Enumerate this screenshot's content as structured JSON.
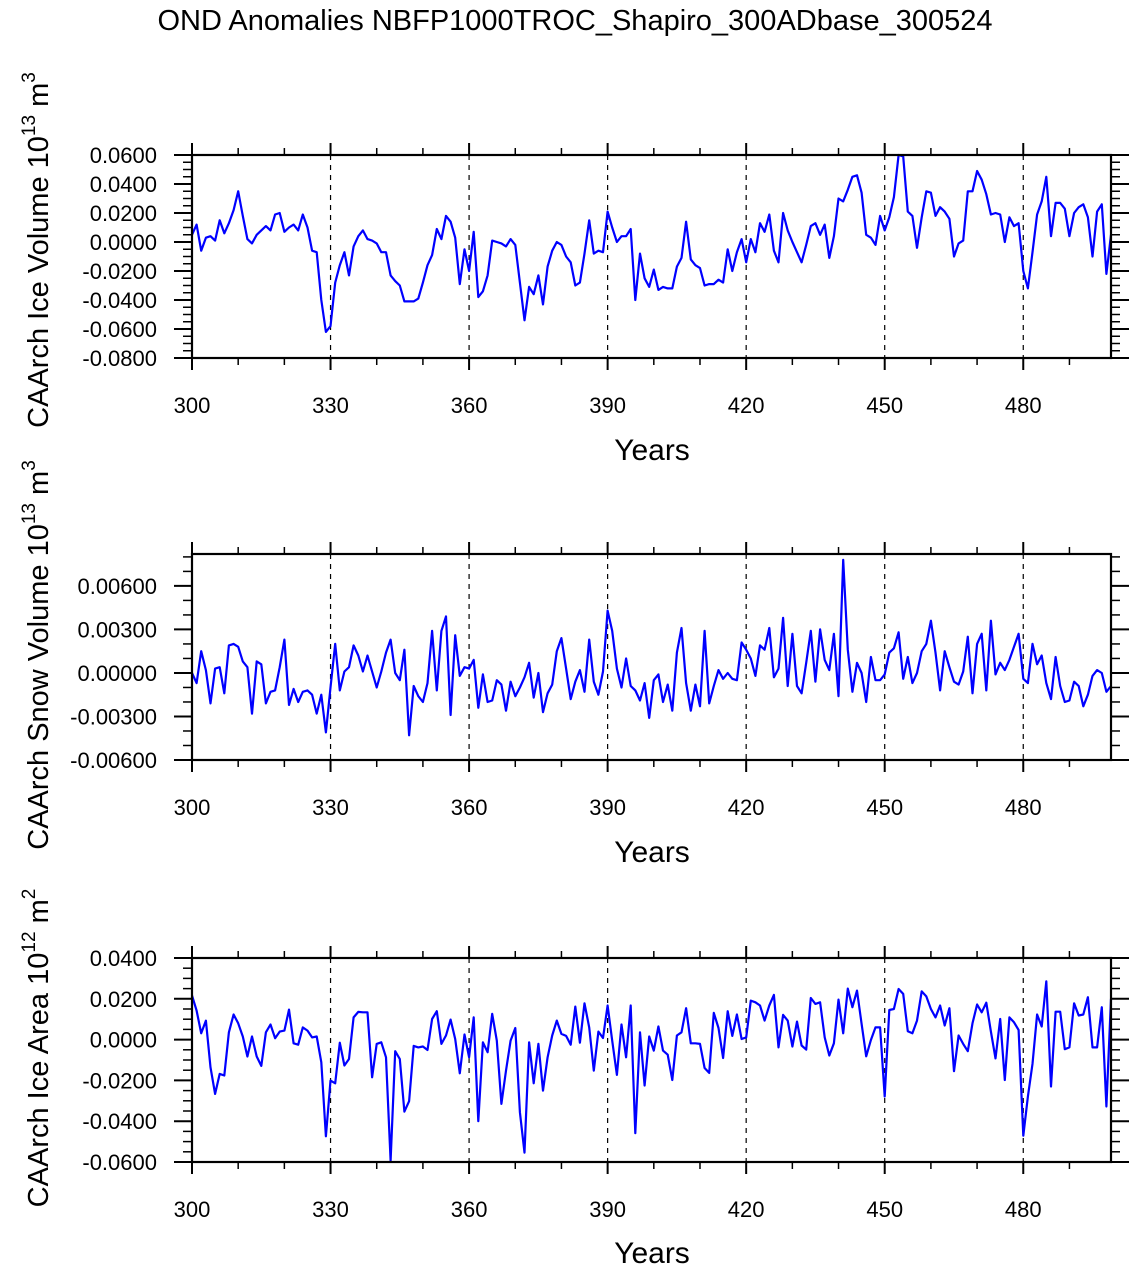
{
  "chart_data": {
    "title": "OND Anomalies NBFP1000TROC_Shapiro_300ADbase_300524",
    "type": "line",
    "line_color": "#0000FF",
    "x": {
      "start": 300,
      "end": 499,
      "step": 1
    },
    "panels": [
      {
        "ylabel": "CAArch Ice Volume 10",
        "ylabel_exp": "13",
        "ylabel_unit": " m",
        "ylabel_unit_exp": "3",
        "xlabel": "Years",
        "ylim": [
          -0.08,
          0.06
        ],
        "yticks": [
          0.06,
          0.04,
          0.02,
          0.0,
          -0.02,
          -0.04,
          -0.06,
          -0.08
        ],
        "ytick_labels": [
          "0.0600",
          "0.0400",
          "0.0200",
          "0.0000",
          "-0.0200",
          "-0.0400",
          "-0.0600",
          "-0.0800"
        ],
        "yminor": 0.005,
        "xlim": [
          300,
          499
        ],
        "xticks": [
          300,
          330,
          360,
          390,
          420,
          450,
          480
        ],
        "xtick_labels": [
          "300",
          "330",
          "360",
          "390",
          "420",
          "450",
          "480"
        ],
        "xminor": 10,
        "dashed_x": [
          330,
          360,
          390,
          420,
          450,
          480
        ],
        "values": [
          0.005,
          0.012,
          -0.006,
          0.003,
          0.004,
          0.001,
          0.015,
          0.006,
          0.013,
          0.022,
          0.035,
          0.018,
          0.002,
          -0.001,
          0.005,
          0.008,
          0.011,
          0.008,
          0.019,
          0.02,
          0.007,
          0.01,
          0.012,
          0.008,
          0.019,
          0.01,
          -0.006,
          -0.007,
          -0.04,
          -0.062,
          -0.058,
          -0.028,
          -0.016,
          -0.007,
          -0.023,
          -0.003,
          0.004,
          0.008,
          0.002,
          0.001,
          -0.001,
          -0.007,
          -0.007,
          -0.023,
          -0.027,
          -0.03,
          -0.041,
          -0.041,
          -0.041,
          -0.039,
          -0.028,
          -0.016,
          -0.009,
          0.009,
          0.002,
          0.018,
          0.014,
          0.003,
          -0.029,
          -0.005,
          -0.02,
          0.007,
          -0.038,
          -0.034,
          -0.023,
          0.001,
          0.0,
          -0.001,
          -0.003,
          0.002,
          -0.002,
          -0.028,
          -0.054,
          -0.031,
          -0.036,
          -0.023,
          -0.043,
          -0.017,
          -0.006,
          0.0,
          -0.002,
          -0.01,
          -0.014,
          -0.03,
          -0.028,
          -0.008,
          0.015,
          -0.008,
          -0.006,
          -0.007,
          0.021,
          0.01,
          0.0,
          0.004,
          0.004,
          0.009,
          -0.04,
          -0.008,
          -0.025,
          -0.031,
          -0.019,
          -0.033,
          -0.031,
          -0.032,
          -0.032,
          -0.017,
          -0.011,
          0.014,
          -0.012,
          -0.016,
          -0.018,
          -0.03,
          -0.029,
          -0.029,
          -0.026,
          -0.028,
          -0.005,
          -0.02,
          -0.007,
          0.002,
          -0.014,
          0.002,
          -0.007,
          0.013,
          0.007,
          0.019,
          -0.006,
          -0.014,
          0.02,
          0.008,
          0.0,
          -0.007,
          -0.014,
          -0.002,
          0.011,
          0.013,
          0.005,
          0.012,
          -0.011,
          0.004,
          0.03,
          0.028,
          0.036,
          0.045,
          0.046,
          0.034,
          0.005,
          0.003,
          -0.002,
          0.018,
          0.008,
          0.017,
          0.031,
          0.06,
          0.059,
          0.021,
          0.018,
          -0.004,
          0.017,
          0.035,
          0.034,
          0.018,
          0.024,
          0.021,
          0.016,
          -0.01,
          -0.001,
          0.001,
          0.035,
          0.035,
          0.049,
          0.043,
          0.033,
          0.019,
          0.02,
          0.019,
          0.0,
          0.017,
          0.011,
          0.013,
          -0.02,
          -0.032,
          -0.007,
          0.019,
          0.028,
          0.045,
          0.004,
          0.027,
          0.027,
          0.023,
          0.004,
          0.02,
          0.024,
          0.026,
          0.017,
          -0.01,
          0.021,
          0.026,
          -0.022,
          0.005
        ]
      },
      {
        "ylabel": "CAArch Snow Volume 10",
        "ylabel_exp": "13",
        "ylabel_unit": " m",
        "ylabel_unit_exp": "3",
        "xlabel": "Years",
        "ylim": [
          -0.006,
          0.0082
        ],
        "yticks": [
          0.006,
          0.003,
          0.0,
          -0.003,
          -0.006
        ],
        "ytick_labels": [
          "0.00600",
          "0.00300",
          "0.00000",
          "-0.00300",
          "-0.00600"
        ],
        "yminor": 0.001,
        "xlim": [
          300,
          499
        ],
        "xticks": [
          300,
          330,
          360,
          390,
          420,
          450,
          480
        ],
        "xtick_labels": [
          "300",
          "330",
          "360",
          "390",
          "420",
          "450",
          "480"
        ],
        "xminor": 10,
        "dashed_x": [
          330,
          360,
          390,
          420,
          450,
          480
        ],
        "values": [
          0.0,
          -0.0007,
          0.0015,
          0.0002,
          -0.0021,
          0.0003,
          0.0004,
          -0.0014,
          0.0019,
          0.002,
          0.0018,
          0.0008,
          0.0004,
          -0.0028,
          0.0008,
          0.0006,
          -0.0021,
          -0.0013,
          -0.0012,
          0.0004,
          0.0023,
          -0.0022,
          -0.0011,
          -0.002,
          -0.0013,
          -0.0012,
          -0.0015,
          -0.0028,
          -0.0015,
          -0.0041,
          -0.001,
          0.002,
          -0.0012,
          0.0001,
          0.0004,
          0.0019,
          0.0012,
          0.0001,
          0.0012,
          0.0001,
          -0.001,
          0.0001,
          0.0014,
          0.0023,
          0.0,
          -0.0005,
          0.0016,
          -0.0043,
          -0.0009,
          -0.0016,
          -0.002,
          -0.0007,
          0.0029,
          -0.0012,
          0.0029,
          0.0039,
          -0.0029,
          0.0026,
          -0.0002,
          0.0004,
          0.0003,
          0.0009,
          -0.0024,
          -0.0001,
          -0.002,
          -0.0019,
          -0.0005,
          -0.0008,
          -0.0026,
          -0.0006,
          -0.0016,
          -0.001,
          -0.0003,
          0.0007,
          -0.0017,
          0.0,
          -0.0027,
          -0.0014,
          -0.0008,
          0.0015,
          0.0024,
          0.0003,
          -0.0018,
          -0.0006,
          0.0002,
          -0.0013,
          0.0023,
          -0.0006,
          -0.0015,
          0.0001,
          0.0043,
          0.0029,
          0.0003,
          -0.001,
          0.001,
          -0.0009,
          -0.0012,
          -0.0019,
          -0.0007,
          -0.0031,
          -0.0005,
          -0.0001,
          -0.002,
          -0.0008,
          -0.0026,
          0.0014,
          0.0031,
          -0.0007,
          -0.0026,
          -0.0008,
          -0.0023,
          0.0029,
          -0.0021,
          -0.0009,
          0.0002,
          -0.0004,
          0.0,
          -0.0004,
          -0.0005,
          0.0021,
          0.0016,
          0.001,
          -0.0002,
          0.0019,
          0.0016,
          0.0031,
          -0.0003,
          0.0003,
          0.0038,
          -0.0009,
          0.0027,
          -0.0009,
          -0.0014,
          0.0007,
          0.0029,
          -0.0006,
          0.003,
          0.0009,
          0.0002,
          0.0027,
          -0.0016,
          0.0078,
          0.0016,
          -0.0013,
          0.0007,
          0.0,
          -0.002,
          0.0011,
          -0.0005,
          -0.0005,
          -0.0001,
          0.0014,
          0.0017,
          0.0028,
          -0.0004,
          0.0011,
          -0.0007,
          0.0,
          0.0015,
          0.002,
          0.0036,
          0.0014,
          -0.0012,
          0.0015,
          0.0004,
          -0.0006,
          -0.0008,
          0.0001,
          0.0025,
          -0.0014,
          0.002,
          0.0027,
          -0.0012,
          0.0036,
          -0.0001,
          0.0007,
          0.0002,
          0.0009,
          0.0018,
          0.0027,
          -0.0004,
          -0.0007,
          0.002,
          0.0006,
          0.0012,
          -0.0007,
          -0.0018,
          0.0011,
          -0.0009,
          -0.002,
          -0.0019,
          -0.0006,
          -0.0009,
          -0.0023,
          -0.0015,
          -0.0002,
          0.0002,
          0.0,
          -0.0013,
          -0.0009
        ]
      },
      {
        "ylabel": "CAArch Ice Area 10",
        "ylabel_exp": "12",
        "ylabel_unit": " m",
        "ylabel_unit_exp": "2",
        "xlabel": "Years",
        "ylim": [
          -0.06,
          0.04
        ],
        "yticks": [
          0.04,
          0.02,
          0.0,
          -0.02,
          -0.04,
          -0.06
        ],
        "ytick_labels": [
          "0.0400",
          "0.0200",
          "0.0000",
          "-0.0200",
          "-0.0400",
          "-0.0600"
        ],
        "yminor": 0.005,
        "xlim": [
          300,
          499
        ],
        "xticks": [
          300,
          330,
          360,
          390,
          420,
          450,
          480
        ],
        "xtick_labels": [
          "300",
          "330",
          "360",
          "390",
          "420",
          "450",
          "480"
        ],
        "xminor": 10,
        "dashed_x": [
          330,
          360,
          390,
          420,
          450,
          480
        ],
        "values": [
          0.0216,
          0.0142,
          0.0031,
          0.0093,
          -0.0136,
          -0.0266,
          -0.0168,
          -0.0176,
          0.0036,
          0.0123,
          0.008,
          0.0015,
          -0.0083,
          0.0015,
          -0.0083,
          -0.0129,
          0.0036,
          0.0074,
          0.0007,
          0.0039,
          0.0044,
          0.0147,
          -0.0018,
          -0.0025,
          0.006,
          0.0044,
          0.0011,
          0.0015,
          -0.0111,
          -0.0474,
          -0.0201,
          -0.0214,
          -0.0015,
          -0.0127,
          -0.0095,
          0.0109,
          0.0136,
          0.0134,
          0.0134,
          -0.0185,
          -0.0021,
          -0.0013,
          -0.0087,
          -0.0593,
          -0.0057,
          -0.0095,
          -0.0353,
          -0.0302,
          -0.0031,
          -0.0038,
          -0.0034,
          -0.0051,
          0.0101,
          0.0139,
          -0.0021,
          0.002,
          0.0098,
          0.0003,
          -0.0165,
          0.0025,
          -0.0087,
          0.0109,
          -0.04,
          -0.0013,
          -0.0062,
          0.0126,
          -0.0005,
          -0.0315,
          -0.0152,
          -0.0005,
          0.0057,
          -0.0356,
          -0.0554,
          -0.0013,
          -0.0214,
          -0.0021,
          -0.025,
          -0.0087,
          0.002,
          0.0093,
          0.0028,
          0.0018,
          -0.0025,
          0.0162,
          -0.0015,
          0.0178,
          0.006,
          -0.0152,
          0.0039,
          0.0008,
          0.0167,
          -0.0005,
          -0.0173,
          0.0074,
          -0.0087,
          0.0167,
          -0.0459,
          0.0036,
          -0.0225,
          0.0015,
          -0.0054,
          0.0064,
          -0.0054,
          -0.0074,
          -0.0198,
          0.002,
          0.0036,
          0.0154,
          -0.0018,
          -0.0018,
          -0.0021,
          -0.0139,
          -0.0163,
          0.0131,
          0.0057,
          -0.009,
          0.0139,
          0.0018,
          0.0123,
          0.0003,
          0.0011,
          0.0191,
          0.0183,
          0.0167,
          0.0093,
          0.0167,
          0.0219,
          -0.0038,
          0.0121,
          0.0093,
          -0.0034,
          0.0088,
          -0.0029,
          -0.0049,
          0.0204,
          0.0175,
          0.0183,
          0.0011,
          -0.0078,
          -0.0018,
          0.0196,
          0.0031,
          0.025,
          0.0159,
          0.024,
          0.0077,
          -0.0082,
          -0.0002,
          0.006,
          0.006,
          -0.0279,
          0.0145,
          0.015,
          0.0248,
          0.0224,
          0.0041,
          0.0031,
          0.0093,
          0.0237,
          0.0212,
          0.015,
          0.0109,
          0.0167,
          0.0069,
          0.0154,
          -0.0155,
          0.002,
          -0.0021,
          -0.0057,
          0.008,
          0.0172,
          0.0134,
          0.0181,
          0.0039,
          -0.0092,
          0.0101,
          -0.0198,
          0.0109,
          0.0085,
          0.0047,
          -0.0471,
          -0.0279,
          -0.0119,
          0.0123,
          0.0064,
          0.0286,
          -0.023,
          0.0137,
          0.0137,
          -0.0047,
          -0.0038,
          0.0178,
          0.0118,
          0.0123,
          0.0208,
          -0.0038,
          -0.0038,
          0.0159,
          -0.0328,
          0.02
        ]
      }
    ]
  }
}
